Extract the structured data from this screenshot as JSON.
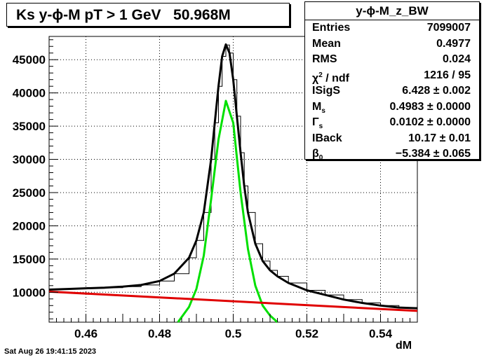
{
  "chart_data": {
    "type": "line",
    "title": "Ks y-ϕ-M pT > 1 GeV   50.968M",
    "xlabel": "dM",
    "ylabel": "",
    "xlim": [
      0.45,
      0.55
    ],
    "ylim": [
      5500,
      48500
    ],
    "grid": true,
    "x_ticks": [
      0.46,
      0.48,
      0.5,
      0.52,
      0.54
    ],
    "x_tick_labels": [
      "0.46",
      "0.48",
      "0.5",
      "0.52",
      "0.54"
    ],
    "y_ticks": [
      10000,
      15000,
      20000,
      25000,
      30000,
      35000,
      40000,
      45000
    ],
    "y_tick_labels": [
      "10000",
      "15000",
      "20000",
      "25000",
      "30000",
      "35000",
      "40000",
      "45000"
    ],
    "series": [
      {
        "color": "#000000",
        "style": "histogram",
        "x": [
          0.45,
          0.455,
          0.46,
          0.465,
          0.47,
          0.475,
          0.48,
          0.484,
          0.488,
          0.49,
          0.492,
          0.494,
          0.495,
          0.496,
          0.497,
          0.498,
          0.499,
          0.5,
          0.501,
          0.502,
          0.503,
          0.504,
          0.506,
          0.508,
          0.51,
          0.512,
          0.515,
          0.52,
          0.525,
          0.53,
          0.535,
          0.54,
          0.545,
          0.55
        ],
        "y": [
          10500,
          10550,
          10600,
          10700,
          10850,
          11100,
          11700,
          12800,
          15200,
          17800,
          22000,
          30000,
          35500,
          41000,
          45500,
          47200,
          46000,
          42000,
          36500,
          31000,
          26000,
          22000,
          17300,
          14700,
          13300,
          12400,
          11400,
          10300,
          9600,
          8900,
          8400,
          8000,
          7700,
          7500
        ]
      },
      {
        "color": "#000000",
        "style": "fit",
        "x": [
          0.45,
          0.455,
          0.46,
          0.465,
          0.47,
          0.475,
          0.48,
          0.484,
          0.488,
          0.49,
          0.492,
          0.494,
          0.495,
          0.496,
          0.497,
          0.498,
          0.499,
          0.5,
          0.501,
          0.502,
          0.503,
          0.504,
          0.506,
          0.508,
          0.51,
          0.512,
          0.515,
          0.52,
          0.525,
          0.53,
          0.535,
          0.54,
          0.545,
          0.55
        ],
        "y": [
          10400,
          10500,
          10600,
          10700,
          10850,
          11100,
          11700,
          12800,
          15200,
          17800,
          22000,
          30000,
          35500,
          41000,
          45500,
          47300,
          46000,
          42000,
          36500,
          31000,
          26000,
          22000,
          17300,
          14700,
          13300,
          12400,
          11400,
          10300,
          9600,
          8900,
          8400,
          8000,
          7700,
          7600
        ]
      },
      {
        "color": "#00e000",
        "style": "fit",
        "x": [
          0.485,
          0.488,
          0.49,
          0.492,
          0.494,
          0.496,
          0.498,
          0.5,
          0.502,
          0.504,
          0.506,
          0.508,
          0.51,
          0.512
        ],
        "y": [
          5500,
          7800,
          10500,
          15500,
          24000,
          33000,
          38800,
          35500,
          25000,
          16500,
          11000,
          8000,
          6500,
          5500
        ]
      },
      {
        "color": "#e00000",
        "style": "fit",
        "x": [
          0.45,
          0.55
        ],
        "y": [
          10100,
          7200
        ]
      }
    ]
  },
  "stats": {
    "title": "y-ϕ-M_z_BW",
    "rows": [
      {
        "k": "Entries",
        "v": "7099007"
      },
      {
        "k": "Mean",
        "v": "0.4977"
      },
      {
        "k": "RMS",
        "v": "0.024"
      },
      {
        "k_sym": "χ",
        "k_sup": "2",
        "k_rest": " / ndf",
        "v": "1216 / 95"
      },
      {
        "k": "ISigS",
        "v": "6.428 ± 0.002"
      },
      {
        "k": "M",
        "k_sub": "s",
        "v": "0.4983 ± 0.0000"
      },
      {
        "k": "Γ",
        "k_sub": "s",
        "v": "0.0102 ± 0.0000"
      },
      {
        "k": "IBack",
        "v": "10.17 ± 0.01"
      },
      {
        "k": "β",
        "k_sub": "0",
        "v": "−5.384 ± 0.065"
      }
    ]
  },
  "footer": {
    "date": "Sat Aug 26 19:41:15 2023"
  }
}
